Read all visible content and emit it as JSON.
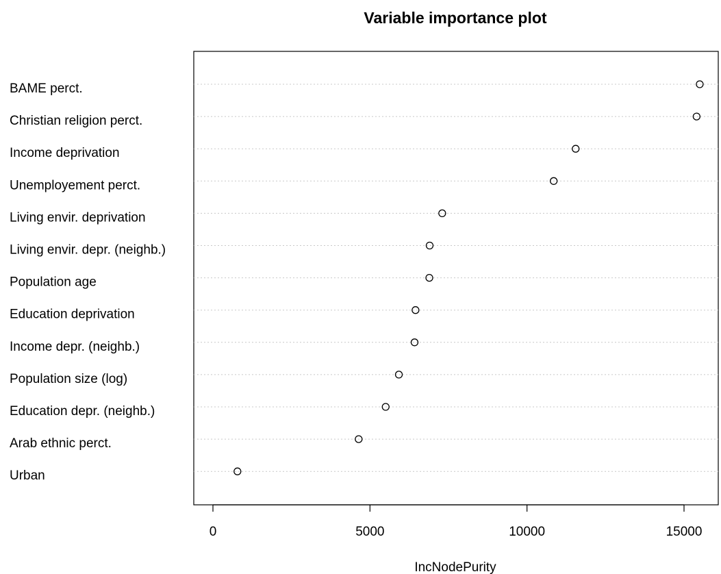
{
  "chart_data": {
    "type": "scatter",
    "title": "Variable importance plot",
    "xlabel": "IncNodePurity",
    "ylabel": "",
    "xlim": [
      -600,
      16150
    ],
    "xticks": [
      0,
      5000,
      10000,
      15000
    ],
    "grid": "horizontal dotted",
    "series": [
      {
        "categories": [
          "BAME perct.",
          "Christian religion perct.",
          "Income deprivation",
          "Unemployement perct.",
          "Living envir. deprivation",
          "Living envir. depr. (neighb.)",
          "Population age",
          "Education deprivation",
          "Income depr. (neighb.)",
          "Population size (log)",
          "Education depr. (neighb.)",
          "Arab ethnic perct.",
          "Urban"
        ],
        "values": [
          15500,
          15400,
          11550,
          10850,
          7300,
          6900,
          6890,
          6450,
          6420,
          5920,
          5500,
          4640,
          780
        ]
      }
    ]
  }
}
